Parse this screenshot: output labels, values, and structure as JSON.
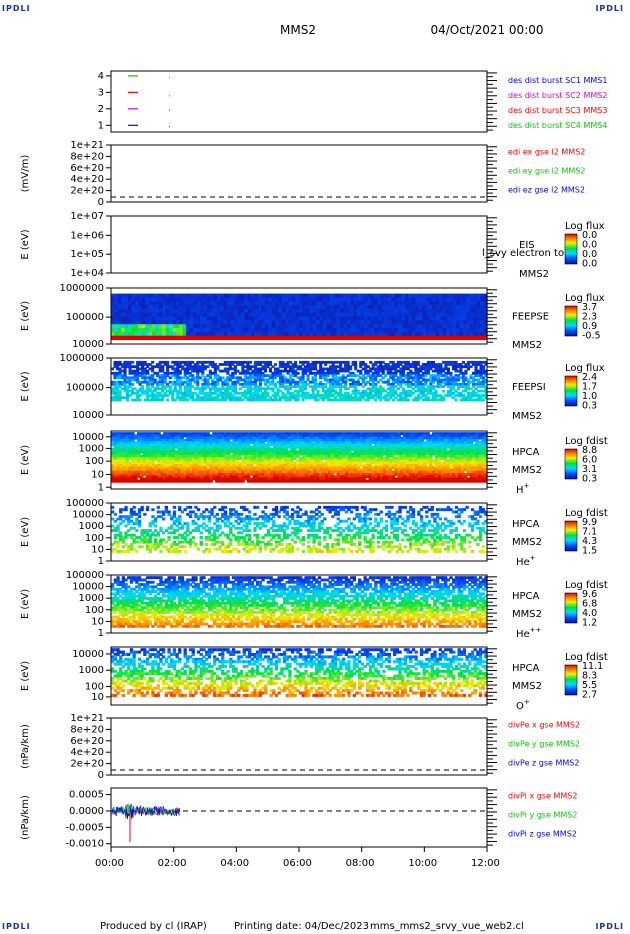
{
  "header": {
    "corner_label": "IPDLI",
    "spacecraft": "MMS2",
    "date": "04/Oct/2021 00:00"
  },
  "footer": {
    "produced_by": "Produced by cl (IRAP)",
    "printing_date": "Printing date: 04/Dec/2023",
    "script": "mms_mms2_srvy_vue_web2.cl"
  },
  "colors": {
    "red": "#ff0000",
    "green": "#00cc00",
    "blue": "#0000ff",
    "magenta": "#e000e0",
    "black": "#000000"
  },
  "x_ticks": [
    "00:00",
    "02:00",
    "04:00",
    "06:00",
    "08:00",
    "10:00",
    "12:00"
  ],
  "chart_data": [
    {
      "type": "line",
      "id": "burst",
      "ylabel": "",
      "yticks": [
        "4",
        "3",
        "2",
        "1"
      ],
      "legend": [
        {
          "text": "des dist burst SC1 MMS1",
          "color": "#0000ff"
        },
        {
          "text": "des dist burst SC2 MMS2",
          "color": "#e000e0"
        },
        {
          "text": "des dist burst SC3 MMS3",
          "color": "#ff0000"
        },
        {
          "text": "des dist burst SC4 MMS4",
          "color": "#00cc00"
        }
      ]
    },
    {
      "type": "line",
      "id": "edi",
      "ylabel": "(mV/m)",
      "yticks": [
        "1e+21",
        "8e+20",
        "6e+20",
        "4e+20",
        "2e+20",
        "0"
      ],
      "legend": [
        {
          "text": "edi ex gse l2 MMS2",
          "color": "#ff0000"
        },
        {
          "text": "edi ey gse l2 MMS2",
          "color": "#00cc00"
        },
        {
          "text": "edi ez gse l2 MMS2",
          "color": "#0000ff"
        }
      ]
    },
    {
      "type": "heatmap",
      "id": "eis",
      "ylabel": "E (eV)",
      "yticks": [
        "1e+07",
        "1e+06",
        "1e+05",
        "1e+04"
      ],
      "labels": [
        "EIS",
        "MMS2"
      ],
      "extra_label": "l_svy electron to",
      "cbar_title": "Log flux",
      "cbar_values": [
        "0.0",
        "0.0",
        "0.0",
        "0.0"
      ],
      "empty": true
    },
    {
      "type": "heatmap",
      "id": "feepse",
      "ylabel": "E (eV)",
      "yticks": [
        "1000000",
        "100000",
        "10000"
      ],
      "labels": [
        "FEEPSE",
        "MMS2"
      ],
      "cbar_title": "Log flux",
      "cbar_values": [
        "3.7",
        "2.3",
        "0.9",
        "-0.5"
      ]
    },
    {
      "type": "heatmap",
      "id": "feepsi",
      "ylabel": "E (eV)",
      "yticks": [
        "1000000",
        "100000",
        "10000"
      ],
      "labels": [
        "FEEPSI",
        "MMS2"
      ],
      "cbar_title": "Log flux",
      "cbar_values": [
        "2.4",
        "1.7",
        "1.0",
        "0.3"
      ]
    },
    {
      "type": "heatmap",
      "id": "hpca_h",
      "ylabel": "E (eV)",
      "yticks": [
        "10000",
        "1000",
        "100",
        "10",
        "1"
      ],
      "labels": [
        "HPCA",
        "MMS2"
      ],
      "species": "H",
      "sup": "+",
      "cbar_title": "Log fdist",
      "cbar_values": [
        "8.8",
        "6.0",
        "3.1",
        "0.3"
      ]
    },
    {
      "type": "heatmap",
      "id": "hpca_he",
      "ylabel": "E (eV)",
      "yticks": [
        "100000",
        "10000",
        "1000",
        "100",
        "10",
        "1"
      ],
      "labels": [
        "HPCA",
        "MMS2"
      ],
      "species": "He",
      "sup": "+",
      "cbar_title": "Log fdist",
      "cbar_values": [
        "9.9",
        "7.1",
        "4.3",
        "1.5"
      ]
    },
    {
      "type": "heatmap",
      "id": "hpca_he2",
      "ylabel": "E (eV)",
      "yticks": [
        "100000",
        "10000",
        "1000",
        "100",
        "10",
        "1"
      ],
      "labels": [
        "HPCA",
        "MMS2"
      ],
      "species": "He",
      "sup": "++",
      "cbar_title": "Log fdist",
      "cbar_values": [
        "9.6",
        "6.8",
        "4.0",
        "1.2"
      ]
    },
    {
      "type": "heatmap",
      "id": "hpca_o",
      "ylabel": "E (eV)",
      "yticks": [
        "10000",
        "1000",
        "100",
        "10"
      ],
      "labels": [
        "HPCA",
        "MMS2"
      ],
      "species": "O",
      "sup": "+",
      "cbar_title": "Log fdist",
      "cbar_values": [
        "11.1",
        "8.3",
        "5.5",
        "2.7"
      ]
    },
    {
      "type": "line",
      "id": "divpe",
      "ylabel": "(nPa/km)",
      "yticks": [
        "1e+21",
        "8e+20",
        "6e+20",
        "4e+20",
        "2e+20",
        "0"
      ],
      "legend": [
        {
          "text": "divPe x gse MMS2",
          "color": "#ff0000"
        },
        {
          "text": "divPe y gse MMS2",
          "color": "#00cc00"
        },
        {
          "text": "divPe z gse MMS2",
          "color": "#0000ff"
        }
      ]
    },
    {
      "type": "line",
      "id": "divpi",
      "ylabel": "(nPa/km)",
      "yticks": [
        "0.0005",
        "0.0000",
        "-0.0005",
        "-0.0010"
      ],
      "ylim": [
        -0.0011,
        0.0007
      ],
      "data_end_hour": 2.2,
      "legend": [
        {
          "text": "divPi x gse MMS2",
          "color": "#ff0000"
        },
        {
          "text": "divPi y gse MMS2",
          "color": "#00cc00"
        },
        {
          "text": "divPi z gse MMS2",
          "color": "#0000ff"
        }
      ]
    }
  ]
}
